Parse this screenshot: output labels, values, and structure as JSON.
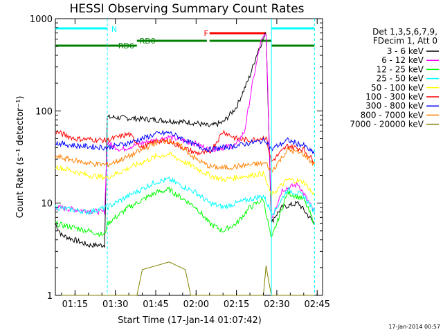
{
  "chart_data": {
    "type": "line",
    "title": "HESSI Observing Summary Count Rates",
    "xlabel": "Start Time (17-Jan-14 01:07:42)",
    "ylabel": "Count Rate (s⁻¹ detector⁻¹)",
    "ylog": true,
    "xlim": [
      "01:07:42",
      "02:47:00"
    ],
    "ylim": [
      1,
      1000
    ],
    "x_ticks": [
      "01:15",
      "01:30",
      "01:45",
      "02:00",
      "02:15",
      "02:30",
      "02:45"
    ],
    "y_ticks": [
      "1",
      "10",
      "100",
      "1000"
    ],
    "legend": {
      "placement": "right",
      "header": [
        "Det 1,3,5,6,7,9,",
        "FDecim 1, Att 0"
      ]
    },
    "annotations": [
      {
        "text": "N",
        "color": "#00ffff"
      },
      {
        "text": "RD0",
        "color": "#008000"
      },
      {
        "text": "RD6",
        "color": "#008000"
      },
      {
        "text": "F",
        "color": "#ff0000"
      }
    ],
    "flag_bars": [
      {
        "name": "night",
        "color": "#00ffff",
        "segments": [
          [
            "01:07:42",
            "01:27:00"
          ],
          [
            "02:28:00",
            "02:44:00"
          ]
        ]
      },
      {
        "name": "flare",
        "color": "#ff0000",
        "segments": [
          [
            "02:05:00",
            "02:26:00"
          ]
        ]
      },
      {
        "name": "rd0",
        "color": "#008000",
        "segments": [
          [
            "01:38:00",
            "02:04:00"
          ],
          [
            "02:05:00",
            "02:28:00"
          ]
        ]
      },
      {
        "name": "rd6",
        "color": "#008000",
        "segments": [
          [
            "01:07:42",
            "01:38:00"
          ],
          [
            "02:28:00",
            "02:44:00"
          ]
        ]
      }
    ],
    "night_lines": [
      "01:27:00",
      "02:28:00",
      "02:44:00"
    ],
    "series": [
      {
        "name": "3 - 6 keV",
        "color": "#000000",
        "x": [
          "01:07:42",
          "01:10",
          "01:20",
          "01:26",
          "01:27",
          "01:30",
          "01:40",
          "01:50",
          "02:00",
          "02:05",
          "02:10",
          "02:15",
          "02:20",
          "02:23",
          "02:26",
          "02:28",
          "02:29",
          "02:32",
          "02:38",
          "02:44"
        ],
        "y": [
          6,
          4.5,
          3.5,
          3.5,
          85,
          85,
          82,
          78,
          74,
          68,
          75,
          110,
          240,
          450,
          700,
          6,
          7,
          9,
          10,
          6
        ]
      },
      {
        "name": "6 - 12 keV",
        "color": "#ff00ff",
        "x": [
          "01:07:42",
          "01:15",
          "01:26",
          "01:27",
          "01:32",
          "01:40",
          "01:50",
          "02:00",
          "02:05",
          "02:10",
          "02:15",
          "02:18",
          "02:21",
          "02:24",
          "02:26",
          "02:28",
          "02:29",
          "02:32",
          "02:38",
          "02:44"
        ],
        "y": [
          9,
          8.5,
          8,
          45,
          38,
          45,
          52,
          44,
          38,
          40,
          43,
          60,
          200,
          550,
          700,
          7,
          8,
          14,
          16,
          8
        ]
      },
      {
        "name": "12 - 25 keV",
        "color": "#00ff00",
        "x": [
          "01:07:42",
          "01:20",
          "01:26",
          "01:27",
          "01:35",
          "01:45",
          "01:50",
          "02:00",
          "02:05",
          "02:10",
          "02:15",
          "02:20",
          "02:25",
          "02:28",
          "02:29",
          "02:34",
          "02:40",
          "02:44"
        ],
        "y": [
          6,
          5,
          4.5,
          6,
          9,
          13,
          14,
          9,
          6,
          5,
          6,
          9,
          11,
          4,
          5,
          13,
          11,
          6
        ]
      },
      {
        "name": "25 - 50 keV",
        "color": "#00ffff",
        "x": [
          "01:07:42",
          "01:20",
          "01:27",
          "01:35",
          "01:45",
          "01:50",
          "02:00",
          "02:05",
          "02:10",
          "02:15",
          "02:20",
          "02:25",
          "02:28",
          "02:29",
          "02:34",
          "02:40",
          "02:44"
        ],
        "y": [
          9,
          8,
          9,
          12,
          17,
          18,
          13,
          10,
          9,
          10,
          11,
          12,
          8,
          8,
          14,
          12,
          8
        ]
      },
      {
        "name": "50 - 100 keV",
        "color": "#ffff00",
        "x": [
          "01:07:42",
          "01:20",
          "01:27",
          "01:35",
          "01:45",
          "01:50",
          "02:00",
          "02:05",
          "02:10",
          "02:15",
          "02:20",
          "02:25",
          "02:28",
          "02:29",
          "02:34",
          "02:40",
          "02:44"
        ],
        "y": [
          25,
          20,
          19,
          24,
          32,
          34,
          24,
          20,
          18,
          19,
          20,
          21,
          12,
          13,
          18,
          17,
          12
        ]
      },
      {
        "name": "100 - 300 keV",
        "color": "#ff0000",
        "x": [
          "01:07:42",
          "01:15",
          "01:27",
          "01:35",
          "01:40",
          "01:45",
          "01:50",
          "01:55",
          "02:00",
          "02:05",
          "02:10",
          "02:15",
          "02:20",
          "02:26",
          "02:28",
          "02:29",
          "02:34",
          "02:40",
          "02:44"
        ],
        "y": [
          60,
          50,
          48,
          56,
          40,
          47,
          47,
          40,
          35,
          35,
          60,
          50,
          48,
          52,
          28,
          30,
          42,
          38,
          28
        ]
      },
      {
        "name": "300 - 800 keV",
        "color": "#0000ff",
        "x": [
          "01:07:42",
          "01:15",
          "01:27",
          "01:35",
          "01:45",
          "01:50",
          "01:55",
          "02:00",
          "02:05",
          "02:10",
          "02:15",
          "02:20",
          "02:26",
          "02:28",
          "02:29",
          "02:34",
          "02:40",
          "02:44"
        ],
        "y": [
          45,
          42,
          40,
          45,
          56,
          58,
          50,
          42,
          38,
          40,
          42,
          45,
          48,
          38,
          40,
          48,
          42,
          34
        ]
      },
      {
        "name": "800 - 7000 keV",
        "color": "#ff8000",
        "x": [
          "01:07:42",
          "01:20",
          "01:27",
          "01:35",
          "01:45",
          "01:50",
          "01:55",
          "02:00",
          "02:05",
          "02:10",
          "02:15",
          "02:20",
          "02:26",
          "02:28",
          "02:29",
          "02:34",
          "02:40",
          "02:44"
        ],
        "y": [
          32,
          27,
          26,
          32,
          45,
          48,
          40,
          30,
          25,
          24,
          25,
          26,
          27,
          22,
          24,
          38,
          34,
          26
        ]
      },
      {
        "name": "7000 - 20000 keV",
        "color": "#808000",
        "x": [
          "01:07:42",
          "01:38",
          "01:40",
          "01:50",
          "01:56",
          "01:58",
          "02:00",
          "02:25",
          "02:26",
          "02:27",
          "02:28",
          "02:44"
        ],
        "y": [
          1,
          1,
          1.9,
          2.3,
          1.9,
          1,
          1,
          1,
          2.1,
          1.4,
          1,
          1
        ]
      }
    ]
  },
  "timestamp": "17-Jan-2014 00:57"
}
